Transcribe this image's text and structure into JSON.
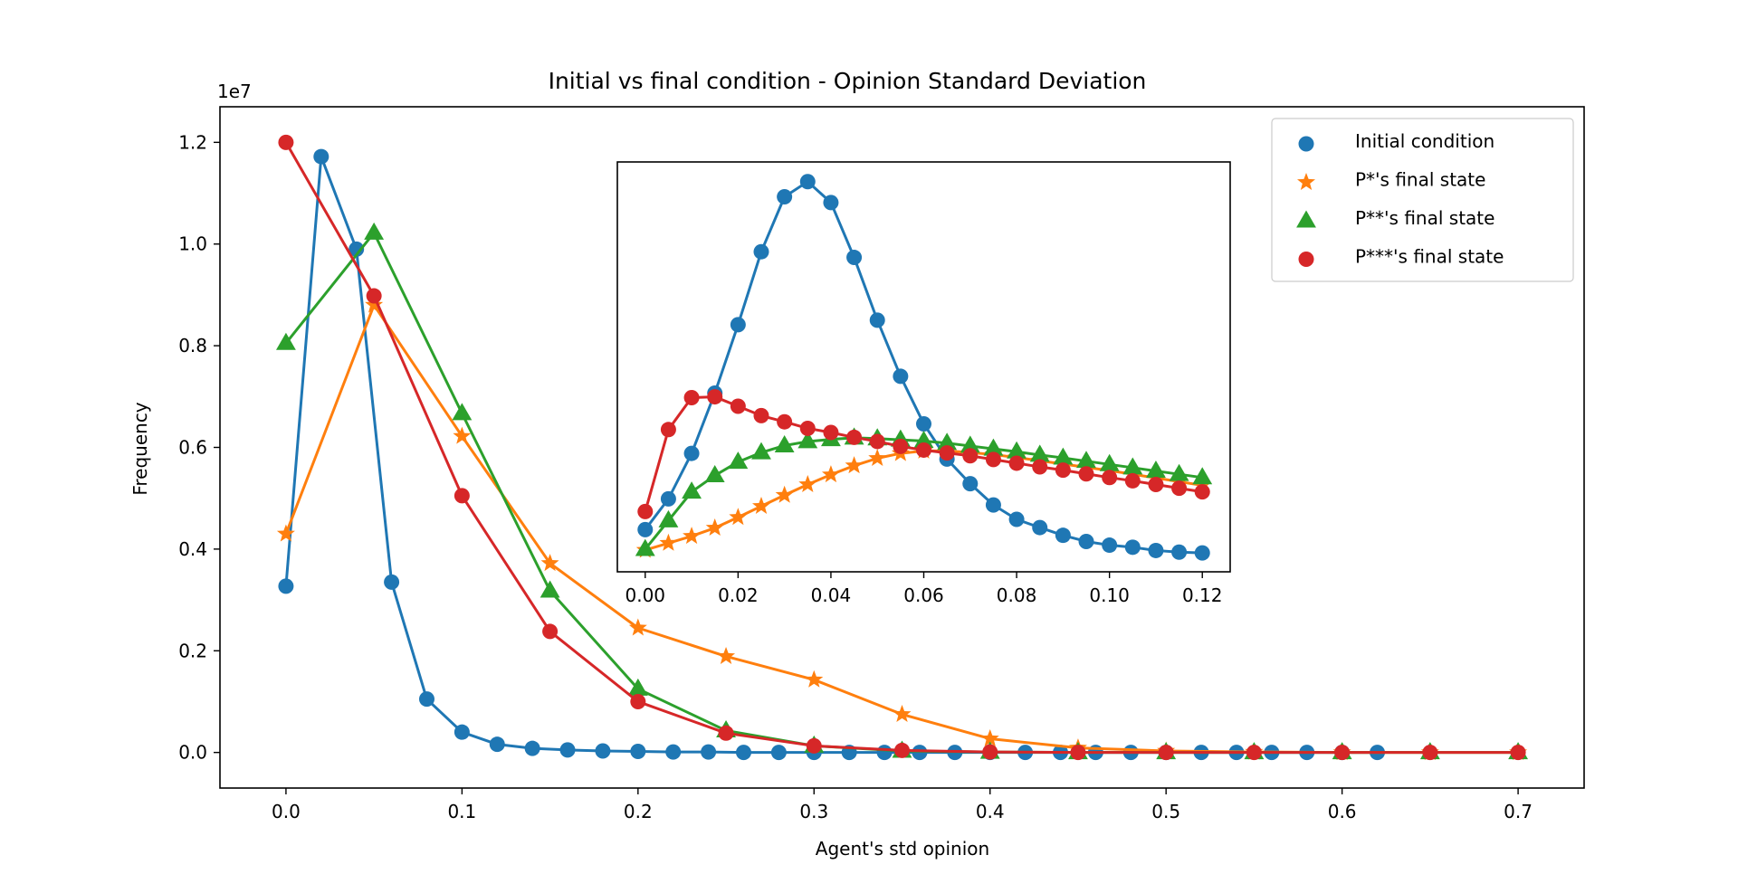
{
  "chart_data": {
    "type": "line",
    "title": "Initial vs final condition - Opinion Standard Deviation",
    "xlabel": "Agent's std opinion",
    "ylabel": "Frequency",
    "y_offset_label": "1e7",
    "xlim": [
      -0.0375,
      0.7375
    ],
    "ylim": [
      -0.07,
      1.27
    ],
    "xticks": [
      0.0,
      0.1,
      0.2,
      0.3,
      0.4,
      0.5,
      0.6,
      0.7
    ],
    "xtick_labels": [
      "0.0",
      "0.1",
      "0.2",
      "0.3",
      "0.4",
      "0.5",
      "0.6",
      "0.7"
    ],
    "yticks": [
      0.0,
      0.2,
      0.4,
      0.6,
      0.8,
      1.0,
      1.2
    ],
    "ytick_labels": [
      "0.0",
      "0.2",
      "0.4",
      "0.6",
      "0.8",
      "1.0",
      "1.2"
    ],
    "legend_position": "top-right",
    "series": [
      {
        "name": "Initial condition",
        "color": "#1f77b4",
        "marker": "circle",
        "x": [
          0.0,
          0.02,
          0.04,
          0.06,
          0.08,
          0.1,
          0.12,
          0.14,
          0.16,
          0.18,
          0.2,
          0.22,
          0.24,
          0.26,
          0.28,
          0.3,
          0.32,
          0.34,
          0.36,
          0.38,
          0.4,
          0.42,
          0.44,
          0.46,
          0.48,
          0.5,
          0.52,
          0.54,
          0.56,
          0.58,
          0.6,
          0.62
        ],
        "y": [
          0.327,
          1.172,
          0.99,
          0.335,
          0.105,
          0.04,
          0.016,
          0.008,
          0.005,
          0.003,
          0.002,
          0.001,
          0.001,
          0.0,
          0.0,
          0.0,
          0.0,
          0.0,
          0.0,
          0.0,
          0.0,
          0.0,
          0.0,
          0.0,
          0.0,
          0.0,
          0.0,
          0.0,
          0.0,
          0.0,
          0.0,
          0.0
        ]
      },
      {
        "name": "P*'s final state",
        "color": "#ff7f0e",
        "marker": "star",
        "x": [
          0.0,
          0.05,
          0.1,
          0.15,
          0.2,
          0.25,
          0.3,
          0.35,
          0.4,
          0.45,
          0.5,
          0.55,
          0.6,
          0.65,
          0.7
        ],
        "y": [
          0.43,
          0.88,
          0.622,
          0.372,
          0.245,
          0.189,
          0.143,
          0.075,
          0.027,
          0.009,
          0.003,
          0.001,
          0.0,
          0.0,
          0.0
        ]
      },
      {
        "name": "P**'s final state",
        "color": "#2ca02c",
        "marker": "triangle",
        "x": [
          0.0,
          0.05,
          0.1,
          0.15,
          0.2,
          0.25,
          0.3,
          0.35,
          0.4,
          0.45,
          0.5,
          0.55,
          0.6,
          0.65,
          0.7
        ],
        "y": [
          0.805,
          1.022,
          0.667,
          0.318,
          0.125,
          0.043,
          0.013,
          0.003,
          0.001,
          0.0,
          0.0,
          0.0,
          0.0,
          0.0,
          0.0
        ]
      },
      {
        "name": "P***'s final state",
        "color": "#d62728",
        "marker": "circle",
        "x": [
          0.0,
          0.05,
          0.1,
          0.15,
          0.2,
          0.25,
          0.3,
          0.35,
          0.4,
          0.45,
          0.5,
          0.55,
          0.6,
          0.65,
          0.7
        ],
        "y": [
          1.2,
          0.898,
          0.505,
          0.238,
          0.1,
          0.038,
          0.013,
          0.004,
          0.001,
          0.0,
          0.0,
          0.0,
          0.0,
          0.0,
          0.0
        ]
      }
    ],
    "inset": {
      "xlim": [
        -0.006,
        0.126
      ],
      "ylim": [
        0.0,
        1.0
      ],
      "y_ticks_shown": false,
      "xticks": [
        0.0,
        0.02,
        0.04,
        0.06,
        0.08,
        0.1,
        0.12
      ],
      "xtick_labels": [
        "0.00",
        "0.02",
        "0.04",
        "0.06",
        "0.08",
        "0.10",
        "0.12"
      ],
      "x": [
        0.0,
        0.005,
        0.01,
        0.015,
        0.02,
        0.025,
        0.03,
        0.035,
        0.04,
        0.045,
        0.05,
        0.055,
        0.06,
        0.065,
        0.07,
        0.075,
        0.08,
        0.085,
        0.09,
        0.095,
        0.1,
        0.105,
        0.11,
        0.115,
        0.12
      ],
      "series": [
        {
          "name": "Initial condition",
          "y": [
            0.103,
            0.178,
            0.289,
            0.436,
            0.603,
            0.781,
            0.915,
            0.952,
            0.901,
            0.767,
            0.614,
            0.477,
            0.361,
            0.275,
            0.215,
            0.163,
            0.128,
            0.108,
            0.089,
            0.074,
            0.065,
            0.06,
            0.052,
            0.048,
            0.046
          ]
        },
        {
          "name": "P*'s final state",
          "y": [
            0.053,
            0.07,
            0.087,
            0.107,
            0.133,
            0.16,
            0.187,
            0.213,
            0.237,
            0.259,
            0.277,
            0.289,
            0.295,
            0.295,
            0.291,
            0.286,
            0.279,
            0.271,
            0.263,
            0.255,
            0.247,
            0.238,
            0.229,
            0.22,
            0.211
          ]
        },
        {
          "name": "P**'s final state",
          "y": [
            0.055,
            0.125,
            0.195,
            0.235,
            0.268,
            0.291,
            0.308,
            0.318,
            0.323,
            0.327,
            0.325,
            0.322,
            0.319,
            0.314,
            0.307,
            0.3,
            0.293,
            0.285,
            0.278,
            0.27,
            0.262,
            0.254,
            0.246,
            0.238,
            0.23
          ]
        },
        {
          "name": "P***'s final state",
          "y": [
            0.147,
            0.347,
            0.425,
            0.427,
            0.404,
            0.381,
            0.366,
            0.35,
            0.34,
            0.328,
            0.318,
            0.306,
            0.297,
            0.29,
            0.283,
            0.274,
            0.265,
            0.256,
            0.248,
            0.239,
            0.23,
            0.222,
            0.213,
            0.204,
            0.195
          ]
        }
      ]
    }
  }
}
